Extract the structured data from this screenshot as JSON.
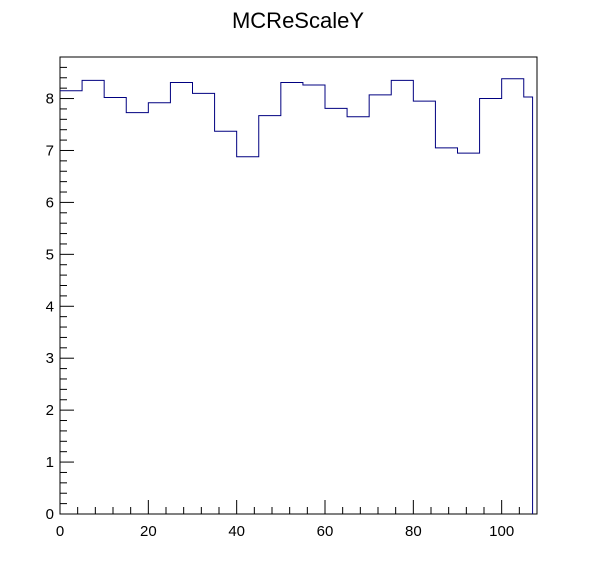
{
  "chart_data": {
    "type": "histogram",
    "title": "MCReScaleY",
    "xlabel": "",
    "ylabel": "",
    "xlim": [
      0,
      108
    ],
    "ylim": [
      0,
      8.8
    ],
    "x_ticks": [
      0,
      20,
      40,
      60,
      80,
      100
    ],
    "y_ticks": [
      0,
      1,
      2,
      3,
      4,
      5,
      6,
      7,
      8
    ],
    "x_tick_labels": [
      "0",
      "20",
      "40",
      "60",
      "80",
      "100"
    ],
    "y_tick_labels": [
      "0",
      "1",
      "2",
      "3",
      "4",
      "5",
      "6",
      "7",
      "8"
    ],
    "grid": false,
    "legend": "none",
    "line_color": "#000080",
    "series": [
      {
        "bin_edges": [
          0,
          5,
          10,
          15,
          20,
          25,
          30,
          35,
          40,
          45,
          50,
          55,
          60,
          65,
          70,
          75,
          80,
          85,
          90,
          95,
          100,
          105,
          107
        ],
        "values": [
          8.15,
          8.35,
          8.02,
          7.73,
          7.92,
          8.31,
          8.1,
          7.37,
          6.88,
          7.67,
          8.31,
          8.26,
          7.81,
          7.65,
          8.07,
          8.35,
          7.95,
          7.05,
          6.95,
          8.0,
          8.38,
          8.03
        ]
      }
    ]
  }
}
